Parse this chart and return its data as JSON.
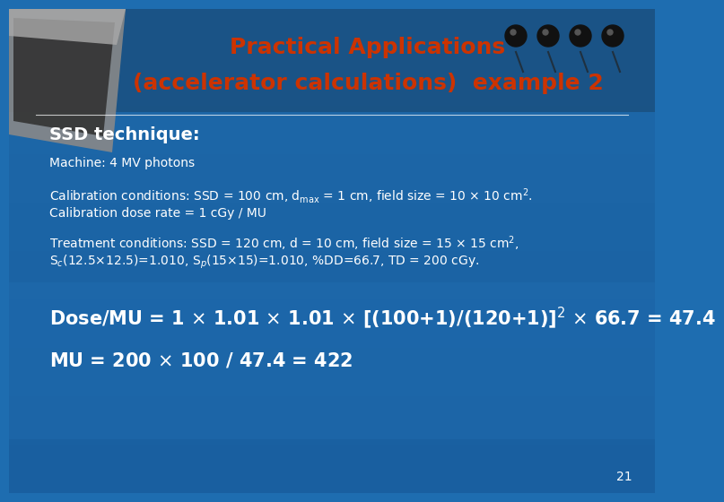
{
  "title_line1": "Practical Applications",
  "title_line2": "(accelerator calculations)  example 2",
  "title_color": "#cc3300",
  "bg_main": "#1e6db0",
  "bg_header": "#1a5c95",
  "text_color": "#ffffff",
  "slide_number": "21",
  "ssd_technique": "SSD technique:",
  "machine": "Machine: 4 MV photons",
  "calib_line1": "Calibration conditions: SSD = 100 cm, d$_{\\mathrm{max}}$ = 1 cm, field size = 10 $\\times$ 10 cm$^2$.",
  "calib_line2": "Calibration dose rate = 1 cGy / MU",
  "treat_line1": "Treatment conditions: SSD = 120 cm, d = 10 cm, field size = 15 $\\times$ 15 cm$^2$,",
  "treat_line2": "S$_c$(12.5$\\times$12.5)=1.010, S$_p$(15$\\times$15)=1.010, %DD=66.7, TD = 200 cGy.",
  "dose_mu": "Dose/MU = 1 $\\times$ 1.01 $\\times$ 1.01 $\\times$ [(100+1)/(120+1)]$^2$ $\\times$ 66.7 = 47.4",
  "mu_line": "MU = 200 $\\times$ 100 / 47.4 = 422",
  "title_fs": 18,
  "ssd_fs": 14,
  "body_fs": 10,
  "formula_fs": 15
}
